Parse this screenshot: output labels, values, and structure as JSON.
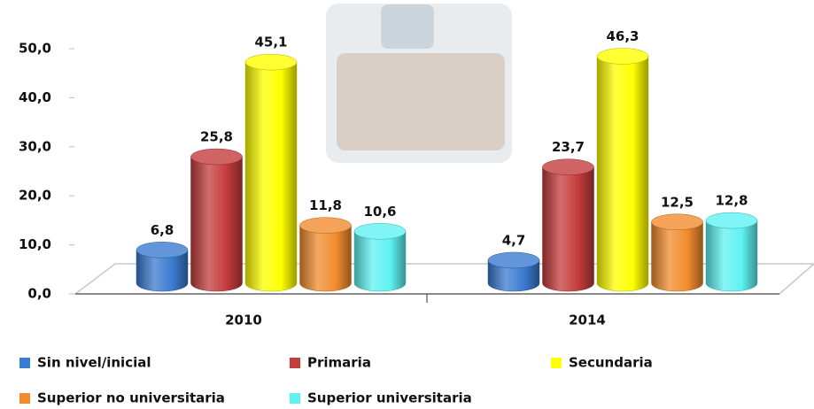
{
  "chart_data": {
    "type": "bar",
    "categories": [
      "2010",
      "2014"
    ],
    "series": [
      {
        "name": "Sin nivel/inicial",
        "color": "#3b7bd0",
        "values": [
          6.8,
          4.7
        ],
        "value_labels": [
          "6,8",
          "4,7"
        ]
      },
      {
        "name": "Primaria",
        "color": "#c43c3c",
        "values": [
          25.8,
          23.7
        ],
        "value_labels": [
          "25,8",
          "23,7"
        ]
      },
      {
        "name": "Secundaria",
        "color": "#ffff00",
        "values": [
          45.1,
          46.3
        ],
        "value_labels": [
          "45,1",
          "46,3"
        ]
      },
      {
        "name": "Superior no universitaria",
        "color": "#f28c2e",
        "values": [
          11.8,
          12.5
        ],
        "value_labels": [
          "11,8",
          "12,5"
        ]
      },
      {
        "name": "Superior universitaria",
        "color": "#5ff2f2",
        "values": [
          10.6,
          12.8
        ],
        "value_labels": [
          "10,6",
          "12,8"
        ]
      }
    ],
    "ylim": [
      0,
      50
    ],
    "yticks": [
      {
        "value": 0,
        "label": "0,0"
      },
      {
        "value": 10,
        "label": "10,0"
      },
      {
        "value": 20,
        "label": "20,0"
      },
      {
        "value": 30,
        "label": "30,0"
      },
      {
        "value": 40,
        "label": "40,0"
      },
      {
        "value": 50,
        "label": "50,0"
      }
    ],
    "legend": "bottom"
  }
}
